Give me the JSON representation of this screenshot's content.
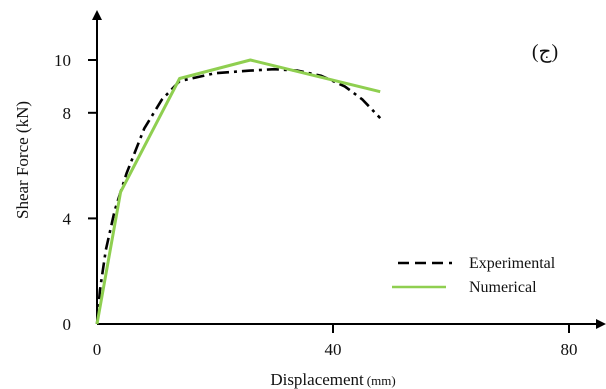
{
  "chart_data": {
    "type": "line",
    "title": "",
    "panel_tag": "(ج)",
    "xlabel": "Displacement",
    "xlabel_unit": "(mm)",
    "ylabel": "Shear Force (kN)",
    "xlim": [
      0,
      85
    ],
    "ylim": [
      0,
      10.5
    ],
    "x_ticks": [
      0,
      40,
      80
    ],
    "x_tick_labels": [
      "0",
      "40",
      "80"
    ],
    "y_ticks": [
      0,
      4,
      8,
      10
    ],
    "y_tick_labels": [
      "0",
      "4",
      "8",
      "10"
    ],
    "grid": false,
    "legend_position": "bottom-right",
    "series": [
      {
        "name": "Experimental",
        "style": "dash-dot",
        "color": "#000000",
        "x": [
          0,
          0.5,
          1.5,
          3,
          5,
          8,
          11,
          14,
          20,
          26,
          30,
          34,
          38,
          42,
          45,
          48
        ],
        "y": [
          0,
          1.3,
          2.8,
          4.3,
          5.7,
          7.4,
          8.5,
          9.2,
          9.5,
          9.6,
          9.65,
          9.6,
          9.4,
          9.0,
          8.5,
          7.8
        ]
      },
      {
        "name": "Numerical",
        "style": "solid",
        "color": "#8fcf50",
        "x": [
          0,
          4,
          14,
          26,
          48
        ],
        "y": [
          0,
          5.0,
          9.3,
          10.0,
          8.8
        ]
      }
    ]
  }
}
